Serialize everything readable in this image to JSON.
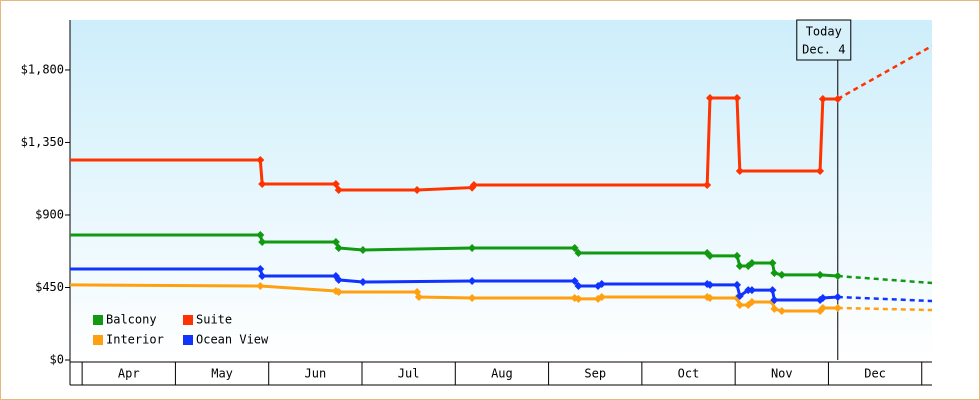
{
  "chart_data": {
    "type": "line",
    "xlim": [
      -0.13,
      9.11
    ],
    "ylim": [
      0,
      2110
    ],
    "xticks": [
      {
        "value": 0.5,
        "label": "Apr"
      },
      {
        "value": 1.5,
        "label": "May"
      },
      {
        "value": 2.5,
        "label": "Jun"
      },
      {
        "value": 3.5,
        "label": "Jul"
      },
      {
        "value": 4.5,
        "label": "Aug"
      },
      {
        "value": 5.5,
        "label": "Sep"
      },
      {
        "value": 6.5,
        "label": "Oct"
      },
      {
        "value": 7.5,
        "label": "Nov"
      },
      {
        "value": 8.5,
        "label": "Dec"
      }
    ],
    "yticks": [
      {
        "value": 0,
        "label": "$0"
      },
      {
        "value": 450,
        "label": "$450"
      },
      {
        "value": 900,
        "label": "$900"
      },
      {
        "value": 1350,
        "label": "$1,350"
      },
      {
        "value": 1800,
        "label": "$1,800"
      }
    ],
    "annotation": {
      "lines": [
        "Today",
        "Dec. 4"
      ],
      "x": 8.1
    },
    "series": [
      {
        "name": "Balcony",
        "color": "#119911",
        "x": [
          -0.13,
          1.91,
          1.93,
          2.72,
          2.75,
          3.01,
          4.18,
          5.28,
          5.32,
          6.7,
          6.73,
          7.02,
          7.05,
          7.14,
          7.18,
          7.4,
          7.42,
          7.5,
          7.91,
          8.1
        ],
        "values": [
          776,
          776,
          732,
          732,
          695,
          683,
          695,
          695,
          664,
          664,
          646,
          646,
          583,
          583,
          602,
          602,
          540,
          528,
          528,
          521
        ],
        "forecast": {
          "x": [
            8.1,
            9.11
          ],
          "values": [
            521,
            478
          ]
        }
      },
      {
        "name": "Suite",
        "color": "#ff3300",
        "x": [
          -0.13,
          1.91,
          1.93,
          2.72,
          2.75,
          3.59,
          4.18,
          4.2,
          6.7,
          6.73,
          7.02,
          7.05,
          7.91,
          7.94,
          8.1
        ],
        "values": [
          1241,
          1241,
          1092,
          1092,
          1055,
          1055,
          1070,
          1086,
          1086,
          1626,
          1626,
          1173,
          1173,
          1620,
          1620
        ],
        "forecast": {
          "x": [
            8.1,
            9.11
          ],
          "values": [
            1620,
            1949
          ]
        }
      },
      {
        "name": "Interior",
        "color": "#ffa010",
        "x": [
          -0.13,
          1.91,
          2.72,
          2.75,
          3.59,
          3.61,
          4.18,
          5.28,
          5.32,
          5.53,
          5.57,
          6.7,
          6.73,
          7.02,
          7.05,
          7.14,
          7.18,
          7.4,
          7.42,
          7.5,
          7.91,
          7.94,
          8.1
        ],
        "values": [
          466,
          459,
          428,
          422,
          422,
          391,
          385,
          385,
          379,
          379,
          391,
          391,
          385,
          385,
          341,
          341,
          360,
          360,
          317,
          304,
          304,
          323,
          323
        ],
        "forecast": {
          "x": [
            8.1,
            9.11
          ],
          "values": [
            323,
            310
          ]
        }
      },
      {
        "name": "Ocean View",
        "color": "#1133ff",
        "x": [
          -0.13,
          1.91,
          1.93,
          2.72,
          2.75,
          3.01,
          4.18,
          5.28,
          5.32,
          5.53,
          5.57,
          6.7,
          6.73,
          7.02,
          7.05,
          7.14,
          7.18,
          7.4,
          7.42,
          7.91,
          7.94,
          8.1
        ],
        "values": [
          565,
          565,
          521,
          521,
          497,
          484,
          490,
          490,
          459,
          459,
          472,
          472,
          466,
          466,
          397,
          434,
          434,
          434,
          372,
          372,
          385,
          391
        ],
        "forecast": {
          "x": [
            8.1,
            9.11
          ],
          "values": [
            391,
            366
          ]
        }
      }
    ]
  }
}
